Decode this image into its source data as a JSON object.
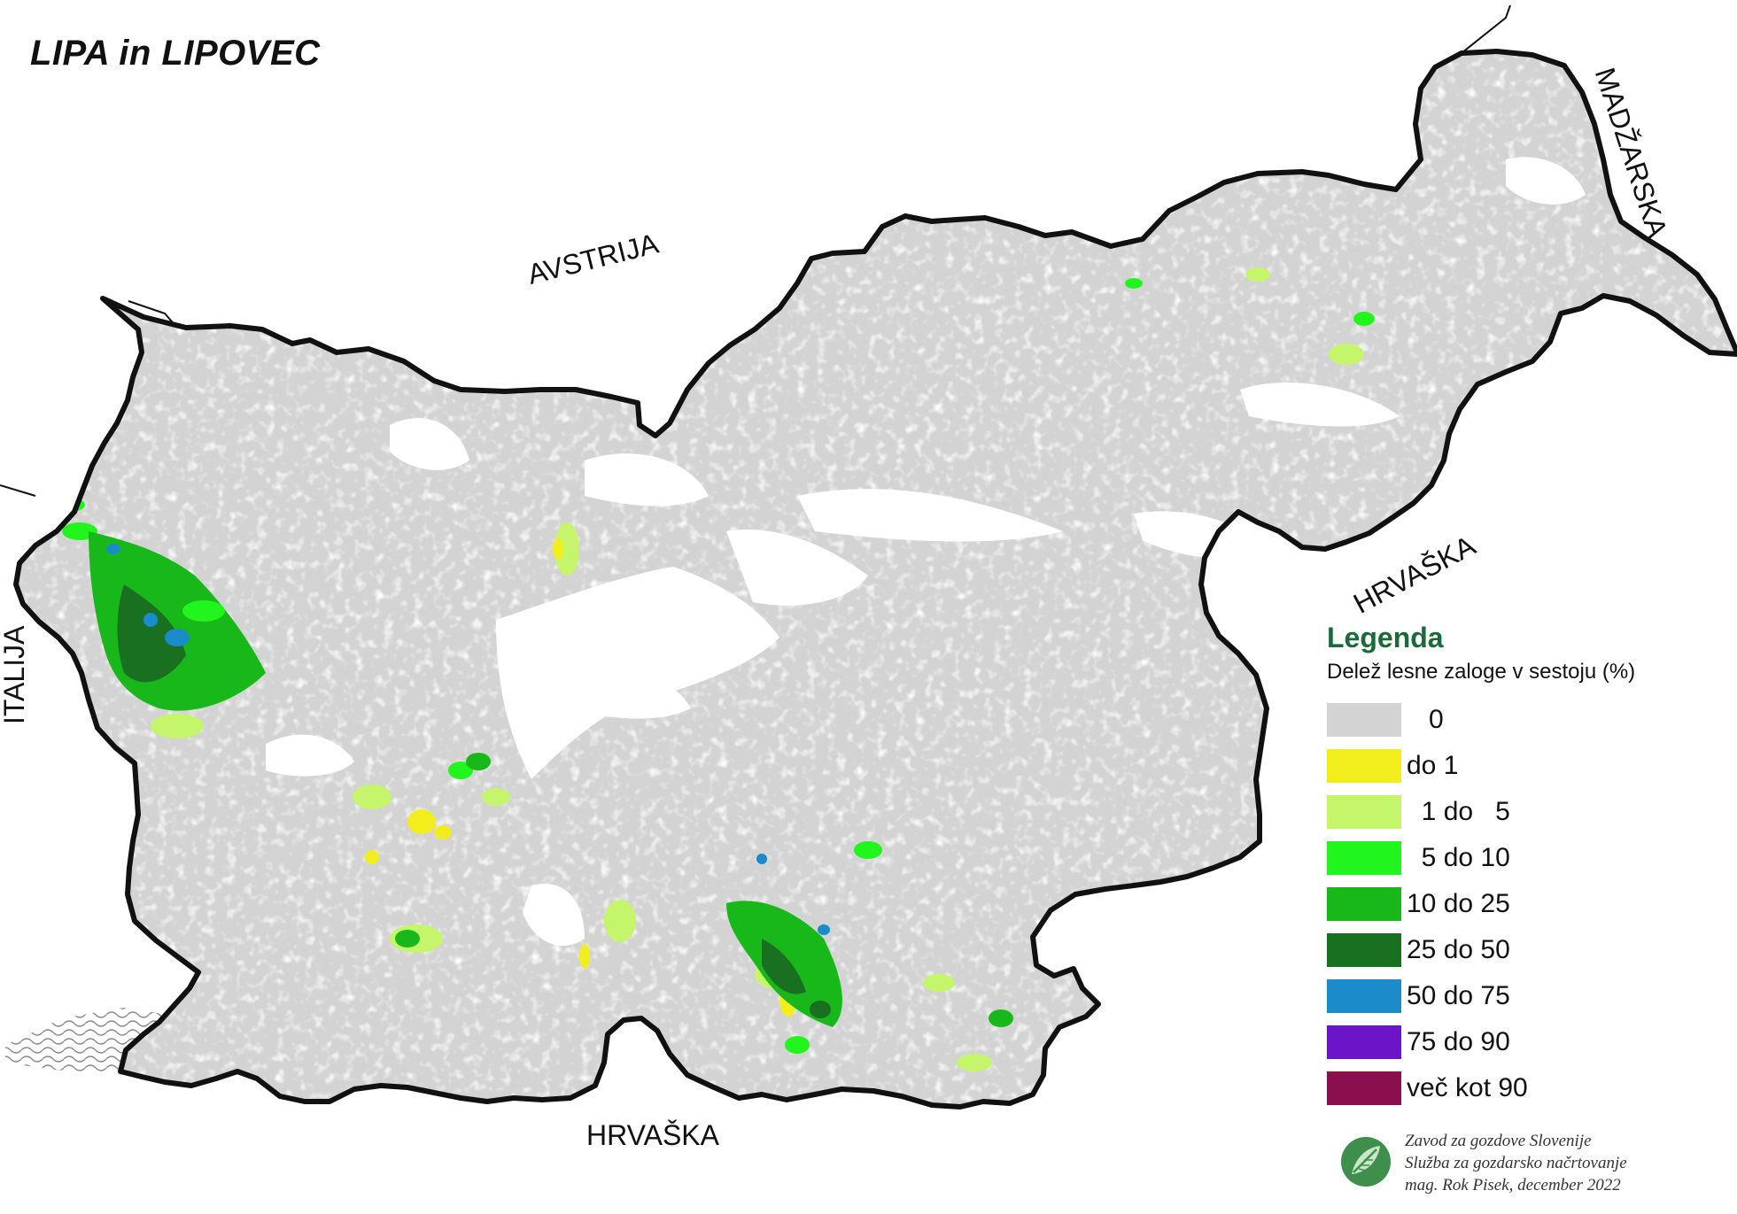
{
  "title": "LIPA in LIPOVEC",
  "countries": {
    "austria": "AVSTRIJA",
    "hungary": "MADŽARSKA",
    "croatia_east": "HRVAŠKA",
    "croatia_south": "HRVAŠKA",
    "italy": "ITALIJA"
  },
  "legend": {
    "title": "Legenda",
    "subtitle": "Delež lesne zaloge v sestoju (%)",
    "items": [
      {
        "label": "   0",
        "color": "#d3d3d3"
      },
      {
        "label": "do 1",
        "color": "#f2ee1e"
      },
      {
        "label": "  1 do   5",
        "color": "#c4f56a"
      },
      {
        "label": "  5 do 10",
        "color": "#22f51e"
      },
      {
        "label": "10 do 25",
        "color": "#19b81a"
      },
      {
        "label": "25 do 50",
        "color": "#1a7021"
      },
      {
        "label": "50 do 75",
        "color": "#1b8bc9"
      },
      {
        "label": "75 do 90",
        "color": "#6a16c8"
      },
      {
        "label": "več kot 90",
        "color": "#8b0e4f"
      }
    ]
  },
  "credits": {
    "line1": "Zavod za gozdove Slovenije",
    "line2": "Služba za gozdarsko načrtovanje",
    "line3": "mag. Rok Pisek, december 2022"
  },
  "colors": {
    "border": "#111111",
    "forest_base": "#d3d3d3",
    "non_forest": "#ffffff"
  },
  "icons": [
    "logo-leaf-icon"
  ]
}
